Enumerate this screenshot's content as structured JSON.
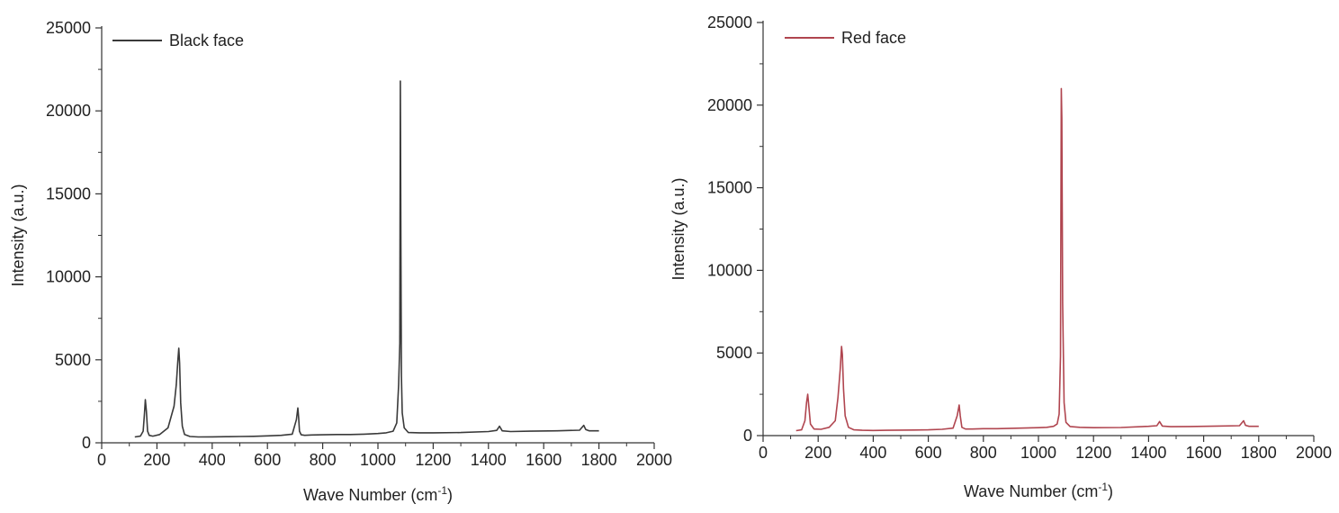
{
  "chart_data": [
    {
      "type": "line",
      "xlabel": "Wave Number (cm",
      "xlabel_sup": "-1",
      "xlabel_tail": ")",
      "ylabel": "Intensity (a.u.)",
      "xlim": [
        0,
        2000
      ],
      "ylim": [
        0,
        25000
      ],
      "xticks": [
        0,
        200,
        400,
        600,
        800,
        1000,
        1200,
        1400,
        1600,
        1800,
        2000
      ],
      "yticks": [
        0,
        5000,
        10000,
        15000,
        20000,
        25000
      ],
      "legend_position": "top-left",
      "grid": false,
      "series": [
        {
          "name": "Black face",
          "color": "#3a3a3a",
          "x": [
            120,
            140,
            150,
            155,
            158,
            162,
            166,
            172,
            185,
            210,
            240,
            262,
            270,
            276,
            279,
            282,
            286,
            292,
            300,
            320,
            350,
            400,
            450,
            500,
            550,
            600,
            650,
            690,
            705,
            710,
            713,
            716,
            722,
            735,
            760,
            800,
            850,
            900,
            950,
            1000,
            1030,
            1055,
            1068,
            1075,
            1079,
            1081,
            1083,
            1085,
            1088,
            1095,
            1110,
            1150,
            1200,
            1300,
            1400,
            1430,
            1440,
            1450,
            1480,
            1550,
            1650,
            1730,
            1745,
            1752,
            1765,
            1800
          ],
          "y": [
            350,
            400,
            700,
            1800,
            2600,
            1900,
            700,
            450,
            400,
            500,
            900,
            2200,
            3500,
            5000,
            5700,
            4800,
            2400,
            1000,
            500,
            380,
            350,
            360,
            370,
            380,
            390,
            420,
            450,
            520,
            1400,
            2100,
            1500,
            700,
            480,
            450,
            470,
            480,
            500,
            500,
            520,
            560,
            600,
            700,
            1200,
            3500,
            6000,
            21800,
            12000,
            4000,
            1800,
            900,
            620,
            600,
            600,
            620,
            680,
            750,
            1000,
            720,
            680,
            700,
            720,
            760,
            1050,
            800,
            720,
            720
          ]
        }
      ]
    },
    {
      "type": "line",
      "xlabel": "Wave Number (cm",
      "xlabel_sup": "-1",
      "xlabel_tail": ")",
      "ylabel": "Intensity (a.u.)",
      "xlim": [
        0,
        2000
      ],
      "ylim": [
        0,
        25000
      ],
      "xticks": [
        0,
        200,
        400,
        600,
        800,
        1000,
        1200,
        1400,
        1600,
        1800,
        2000
      ],
      "yticks": [
        0,
        5000,
        10000,
        15000,
        20000,
        25000
      ],
      "legend_position": "top-left",
      "grid": false,
      "series": [
        {
          "name": "Red face",
          "color": "#b0454f",
          "x": [
            120,
            140,
            152,
            158,
            162,
            166,
            172,
            185,
            210,
            240,
            262,
            272,
            280,
            285,
            288,
            292,
            298,
            310,
            330,
            360,
            400,
            450,
            500,
            550,
            600,
            650,
            690,
            705,
            712,
            716,
            722,
            735,
            760,
            800,
            850,
            900,
            950,
            1000,
            1030,
            1055,
            1068,
            1075,
            1080,
            1083,
            1085,
            1088,
            1093,
            1100,
            1115,
            1150,
            1200,
            1300,
            1400,
            1430,
            1440,
            1450,
            1480,
            1550,
            1650,
            1730,
            1745,
            1752,
            1765,
            1800
          ],
          "y": [
            300,
            350,
            900,
            2000,
            2500,
            1800,
            700,
            400,
            380,
            500,
            900,
            2300,
            4000,
            5400,
            4900,
            2800,
            1200,
            500,
            350,
            320,
            310,
            320,
            330,
            340,
            350,
            380,
            450,
            1200,
            1850,
            1200,
            500,
            400,
            400,
            420,
            420,
            440,
            460,
            480,
            500,
            560,
            700,
            1300,
            4800,
            21000,
            19200,
            8000,
            2000,
            800,
            550,
            500,
            480,
            490,
            560,
            600,
            850,
            580,
            540,
            550,
            580,
            600,
            900,
            620,
            560,
            560
          ]
        }
      ]
    }
  ]
}
